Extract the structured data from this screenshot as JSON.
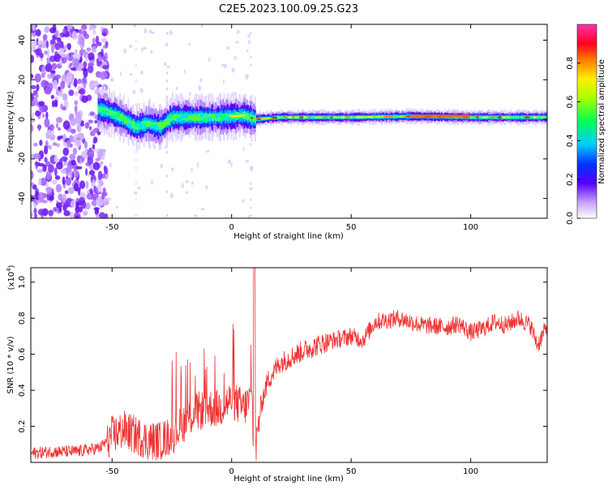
{
  "title": "C2E5.2023.100.09.25.G23",
  "chart_data": [
    {
      "type": "heatmap",
      "xlabel": "Height of straight line (km)",
      "ylabel": "Frequency (Hz)",
      "xlim": [
        -84,
        132
      ],
      "ylim": [
        -50,
        48
      ],
      "xticks": [
        -50,
        0,
        50,
        100
      ],
      "yticks": [
        -40,
        -20,
        0,
        20,
        40
      ],
      "xtick_labels": [
        "-50",
        "0",
        "50",
        "100"
      ],
      "ytick_labels": [
        "-40",
        "-20",
        "0",
        "20",
        "40"
      ],
      "colorbar": {
        "label": "Normalized spectral amplitude",
        "range": [
          0,
          1
        ],
        "ticks": [
          0.0,
          0.2,
          0.4,
          0.6,
          0.8
        ],
        "tick_labels": [
          "0.0",
          "0.2",
          "0.4",
          "0.6",
          "0.8"
        ]
      },
      "ridge": [
        [
          -55,
          5
        ],
        [
          -50,
          3
        ],
        [
          -45,
          0
        ],
        [
          -40,
          -4
        ],
        [
          -35,
          -2
        ],
        [
          -30,
          -4
        ],
        [
          -25,
          1
        ],
        [
          -15,
          1
        ],
        [
          -5,
          1
        ],
        [
          5,
          2
        ],
        [
          10,
          0
        ],
        [
          20,
          1
        ],
        [
          50,
          1
        ],
        [
          75,
          1.5
        ],
        [
          100,
          1
        ],
        [
          132,
          1
        ]
      ]
    },
    {
      "type": "line",
      "xlabel": "Height of straight line (km)",
      "ylabel": "SNR (10 * v/v)",
      "multiplier_label": "(x10",
      "multiplier_exp": "4",
      "multiplier_close": ")",
      "xlim": [
        -84,
        132
      ],
      "ylim": [
        0,
        1.08
      ],
      "xticks": [
        -50,
        0,
        50,
        100
      ],
      "yticks": [
        0.2,
        0.4,
        0.6,
        0.8,
        1.0
      ],
      "xtick_labels": [
        "-50",
        "0",
        "50",
        "100"
      ],
      "ytick_labels": [
        "0.2",
        "0.4",
        "0.6",
        "0.8",
        "1.0"
      ],
      "series": [
        {
          "color": "#ee3333",
          "x": [
            -84,
            -75,
            -65,
            -55,
            -50,
            -45,
            -40,
            -35,
            -30,
            -25,
            -20,
            -15,
            -10,
            -5,
            0,
            5,
            8,
            10,
            12,
            15,
            20,
            30,
            40,
            50,
            55,
            60,
            70,
            80,
            90,
            95,
            100,
            105,
            110,
            115,
            120,
            125,
            128,
            132
          ],
          "y": [
            0.05,
            0.06,
            0.06,
            0.08,
            0.15,
            0.18,
            0.15,
            0.12,
            0.12,
            0.15,
            0.22,
            0.28,
            0.3,
            0.3,
            0.35,
            0.3,
            0.35,
            0.05,
            0.3,
            0.45,
            0.55,
            0.62,
            0.67,
            0.7,
            0.68,
            0.78,
            0.8,
            0.76,
            0.75,
            0.77,
            0.72,
            0.74,
            0.78,
            0.76,
            0.8,
            0.76,
            0.65,
            0.76
          ]
        }
      ],
      "spike": {
        "x": 9.5,
        "y": 1.08
      }
    }
  ]
}
